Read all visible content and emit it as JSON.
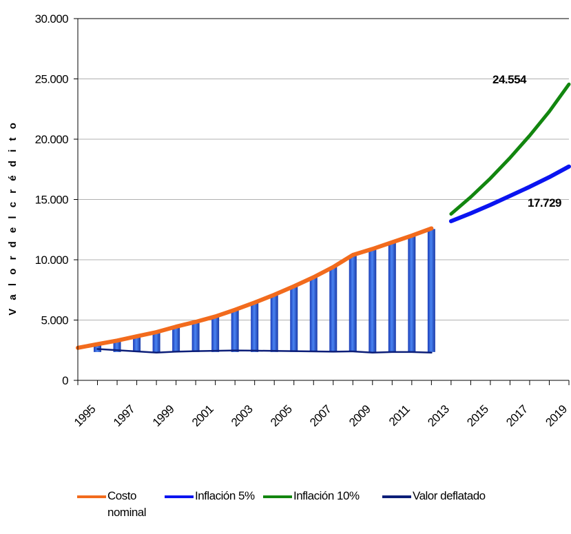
{
  "chart_data": {
    "type": "bar+line",
    "title": "",
    "ylabel": "V a l o r   d e l   c r é d i t o",
    "xlabel": "",
    "ylim": [
      0,
      30000
    ],
    "yticks": [
      0,
      5000,
      10000,
      15000,
      20000,
      25000,
      30000
    ],
    "ytick_labels": [
      "0",
      "5.000",
      "10.000",
      "15.000",
      "20.000",
      "25.000",
      "30.000"
    ],
    "x_labels": [
      "1995",
      "1997",
      "1999",
      "2001",
      "2003",
      "2005",
      "2007",
      "2009",
      "2011",
      "2013",
      "2015",
      "2017",
      "2019"
    ],
    "x_labels_displayed": [
      "1995",
      "1997",
      "1999",
      "2001",
      "2003",
      "2005",
      "2007",
      "2009",
      "2011",
      "2013",
      "2015",
      "2017",
      "2019"
    ],
    "x_start": 1995,
    "x_end": 2020,
    "grid": "horizontal",
    "legend_position": "bottom",
    "bars": {
      "name": "",
      "x": [
        1996,
        1997,
        1998,
        1999,
        2000,
        2001,
        2002,
        2003,
        2004,
        2005,
        2006,
        2007,
        2008,
        2009,
        2010,
        2011,
        2012,
        2013
      ],
      "values": [
        2950,
        3300,
        3650,
        4000,
        4450,
        4850,
        5300,
        5850,
        6450,
        7100,
        7800,
        8550,
        9400,
        10400,
        10900,
        11450,
        12000,
        12550
      ],
      "color": "#3a6fe8"
    },
    "series": [
      {
        "name": "Costo nominal",
        "color": "#f26b1d",
        "x": [
          1995,
          1996,
          1997,
          1998,
          1999,
          2000,
          2001,
          2002,
          2003,
          2004,
          2005,
          2006,
          2007,
          2008,
          2009,
          2010,
          2011,
          2012,
          2013
        ],
        "values": [
          2700,
          3000,
          3300,
          3650,
          4000,
          4450,
          4850,
          5300,
          5850,
          6450,
          7100,
          7800,
          8550,
          9400,
          10400,
          10900,
          11450,
          12000,
          12600
        ]
      },
      {
        "name": "Inflación 5%",
        "color": "#0a14f0",
        "x": [
          2014,
          2015,
          2016,
          2017,
          2018,
          2019,
          2020
        ],
        "values": [
          13200,
          13850,
          14550,
          15300,
          16050,
          16850,
          17729
        ]
      },
      {
        "name": "Inflación 10%",
        "color": "#12860f",
        "x": [
          2014,
          2015,
          2016,
          2017,
          2018,
          2019,
          2020
        ],
        "values": [
          13800,
          15200,
          16750,
          18450,
          20300,
          22300,
          24554
        ]
      },
      {
        "name": "Valor deflatado",
        "color": "#0c1e78",
        "x": [
          1996,
          1997,
          1998,
          1999,
          2000,
          2001,
          2002,
          2003,
          2004,
          2005,
          2006,
          2007,
          2008,
          2009,
          2010,
          2011,
          2012,
          2013
        ],
        "values": [
          2600,
          2500,
          2400,
          2300,
          2380,
          2420,
          2450,
          2480,
          2460,
          2440,
          2420,
          2400,
          2380,
          2400,
          2300,
          2350,
          2350,
          2300
        ]
      }
    ],
    "annotations": [
      {
        "text": "24.554",
        "series": "Inflación 10%"
      },
      {
        "text": "17.729",
        "series": "Inflación 5%"
      }
    ]
  },
  "legend": {
    "items": [
      {
        "label": "Costo nominal",
        "color": "#f26b1d"
      },
      {
        "label": "Inflación 5%",
        "color": "#0a14f0"
      },
      {
        "label": "Inflación 10%",
        "color": "#12860f"
      },
      {
        "label": "Valor deflatado",
        "color": "#0c1e78"
      }
    ]
  }
}
